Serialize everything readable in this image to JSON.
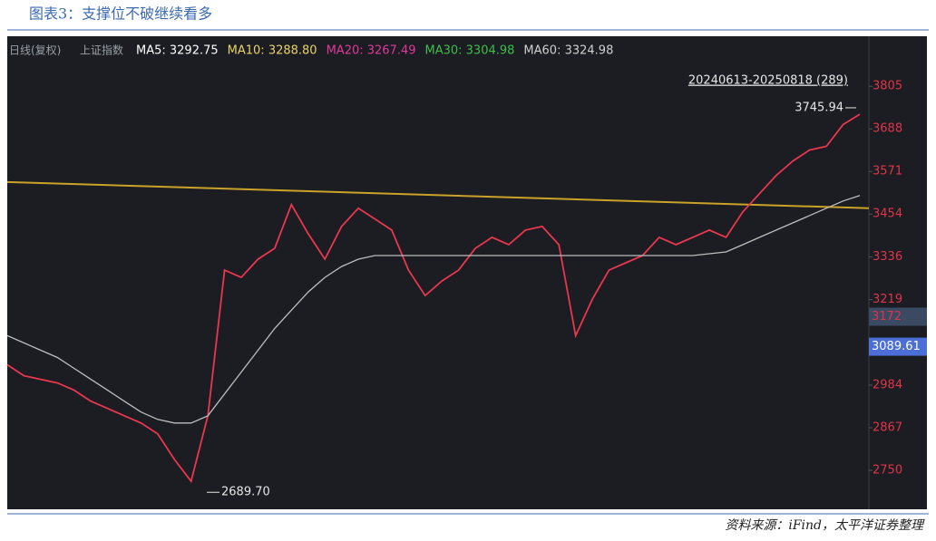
{
  "chart_data": {
    "type": "line",
    "title": "图表3：支撑位不破继续看多",
    "header": "日线(复权)",
    "index_name": "上证指数",
    "legend_texts": [
      {
        "text": "MA5: 3292.75",
        "color": "#ffffff"
      },
      {
        "text": "MA10: 3288.80",
        "color": "#e8d36a"
      },
      {
        "text": "MA20: 3267.49",
        "color": "#e0399a"
      },
      {
        "text": "MA30: 3304.98",
        "color": "#3bbf4a"
      },
      {
        "text": "MA60: 3324.98",
        "color": "#d0d0d0"
      }
    ],
    "date_range": "20240613-20250818 (289)",
    "ylim": [
      2643,
      3930
    ],
    "yticks": [
      2750,
      2867,
      2984,
      3219,
      3336,
      3454,
      3571,
      3688,
      3805
    ],
    "price_markers": [
      {
        "value": 3172,
        "color": "#3a4a63"
      },
      {
        "value": 3089.61,
        "color": "#4b6fd6"
      }
    ],
    "series": [
      {
        "name": "上证指数",
        "color": "#e8374f",
        "values": [
          3040,
          3010,
          3000,
          2990,
          2970,
          2940,
          2920,
          2900,
          2880,
          2850,
          2780,
          2720,
          2900,
          3300,
          3280,
          3330,
          3360,
          3480,
          3400,
          3330,
          3420,
          3470,
          3440,
          3410,
          3300,
          3230,
          3270,
          3300,
          3360,
          3390,
          3370,
          3410,
          3420,
          3370,
          3120,
          3220,
          3300,
          3320,
          3340,
          3390,
          3370,
          3390,
          3410,
          3390,
          3460,
          3510,
          3560,
          3600,
          3630,
          3640,
          3700,
          3728
        ]
      },
      {
        "name": "MA60",
        "color": "#bdbdbd",
        "values": [
          3120,
          3100,
          3080,
          3060,
          3030,
          3000,
          2970,
          2940,
          2910,
          2890,
          2880,
          2880,
          2900,
          2960,
          3020,
          3080,
          3140,
          3190,
          3240,
          3280,
          3310,
          3330,
          3340,
          3340,
          3340,
          3340,
          3340,
          3340,
          3340,
          3340,
          3340,
          3340,
          3340,
          3340,
          3340,
          3340,
          3340,
          3340,
          3340,
          3340,
          3340,
          3340,
          3345,
          3350,
          3370,
          3390,
          3410,
          3430,
          3450,
          3470,
          3490,
          3505
        ]
      }
    ],
    "trendline": {
      "color": "#c9a227",
      "values": [
        3542,
        3470
      ]
    },
    "annotations": [
      {
        "text": "3745.94",
        "value": 3745.94
      },
      {
        "text": "2689.70",
        "value": 2689.7
      }
    ],
    "source": "资料来源：iFind，太平洋证券整理"
  }
}
